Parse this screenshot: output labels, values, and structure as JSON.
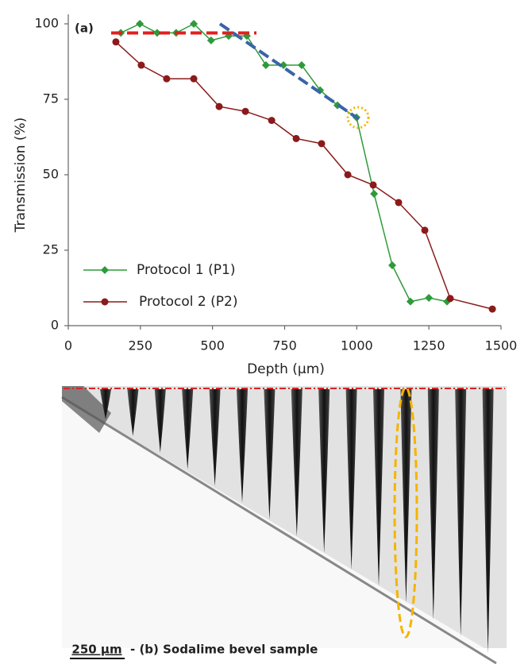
{
  "chart_data": {
    "type": "line",
    "panel_label": "(a)",
    "xlabel": "Depth (µm)",
    "ylabel": "Transmission (%)",
    "xlim": [
      0,
      1500
    ],
    "ylim": [
      0,
      100
    ],
    "xticks": [
      0,
      250,
      500,
      750,
      1000,
      1250,
      1500
    ],
    "yticks": [
      0,
      25,
      50,
      75,
      100
    ],
    "legend": "lower left",
    "series": [
      {
        "name": "Protocol 1 (P1)",
        "color": "#2e9a3a",
        "marker": "diamond",
        "x": [
          182,
          248,
          308,
          374,
          435,
          495,
          556,
          619,
          685,
          746,
          809,
          873,
          933,
          999,
          1060,
          1123,
          1186,
          1250,
          1313
        ],
        "values": [
          97,
          100,
          97,
          97,
          100,
          94.5,
          96,
          96,
          86.3,
          86.3,
          86.3,
          78,
          73,
          69,
          43.7,
          20,
          8,
          9.2,
          8
        ]
      },
      {
        "name": "Protocol 2 (P2)",
        "color": "#8b1a1a",
        "marker": "circle",
        "x": [
          165,
          253,
          341,
          435,
          523,
          614,
          705,
          790,
          878,
          969,
          1057,
          1145,
          1236,
          1324,
          1470
        ],
        "values": [
          94,
          86.3,
          81.8,
          81.8,
          72.6,
          71,
          68,
          62,
          60.3,
          50,
          46.6,
          40.8,
          31.6,
          9,
          5.5
        ]
      }
    ]
  },
  "figure_b": {
    "scale_bar": "250 µm",
    "caption": "- (b) Sodalime bevel sample"
  }
}
